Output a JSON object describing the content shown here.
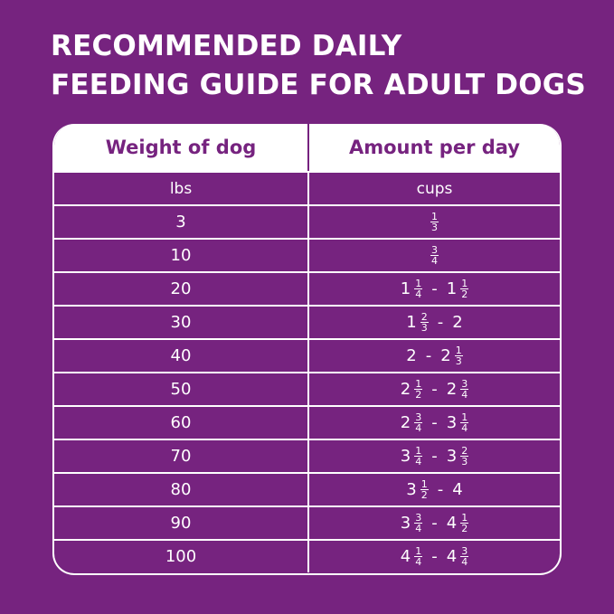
{
  "colors": {
    "background": "#76237f",
    "header_bg": "#ffffff",
    "text": "#ffffff"
  },
  "title": {
    "line1": "RECOMMENDED DAILY",
    "line2": "FEEDING GUIDE FOR ADULT DOGS"
  },
  "table": {
    "headers": [
      "Weight of dog",
      "Amount per day"
    ],
    "units": [
      "lbs",
      "cups"
    ],
    "rows": [
      {
        "weight": "3",
        "amount": [
          {
            "w": "",
            "n": "1",
            "d": "3"
          }
        ]
      },
      {
        "weight": "10",
        "amount": [
          {
            "w": "",
            "n": "3",
            "d": "4"
          }
        ]
      },
      {
        "weight": "20",
        "amount": [
          {
            "w": "1",
            "n": "1",
            "d": "4"
          },
          "-",
          {
            "w": "1",
            "n": "1",
            "d": "2"
          }
        ]
      },
      {
        "weight": "30",
        "amount": [
          {
            "w": "1",
            "n": "2",
            "d": "3"
          },
          "-",
          {
            "w": "2"
          }
        ]
      },
      {
        "weight": "40",
        "amount": [
          {
            "w": "2"
          },
          "-",
          {
            "w": "2",
            "n": "1",
            "d": "3"
          }
        ]
      },
      {
        "weight": "50",
        "amount": [
          {
            "w": "2",
            "n": "1",
            "d": "2"
          },
          "-",
          {
            "w": "2",
            "n": "3",
            "d": "4"
          }
        ]
      },
      {
        "weight": "60",
        "amount": [
          {
            "w": "2",
            "n": "3",
            "d": "4"
          },
          "-",
          {
            "w": "3",
            "n": "1",
            "d": "4"
          }
        ]
      },
      {
        "weight": "70",
        "amount": [
          {
            "w": "3",
            "n": "1",
            "d": "4"
          },
          "-",
          {
            "w": "3",
            "n": "2",
            "d": "3"
          }
        ]
      },
      {
        "weight": "80",
        "amount": [
          {
            "w": "3",
            "n": "1",
            "d": "2"
          },
          "-",
          {
            "w": "4"
          }
        ]
      },
      {
        "weight": "90",
        "amount": [
          {
            "w": "3",
            "n": "3",
            "d": "4"
          },
          "-",
          {
            "w": "4",
            "n": "1",
            "d": "2"
          }
        ]
      },
      {
        "weight": "100",
        "amount": [
          {
            "w": "4",
            "n": "1",
            "d": "4"
          },
          "-",
          {
            "w": "4",
            "n": "3",
            "d": "4"
          }
        ]
      }
    ]
  }
}
